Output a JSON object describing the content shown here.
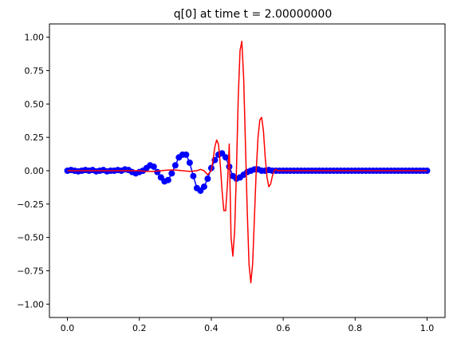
{
  "chart_data": {
    "type": "line",
    "title": "q[0] at time t =     2.00000000",
    "xlabel": "",
    "ylabel": "",
    "xlim": [
      -0.05,
      1.05
    ],
    "ylim": [
      -1.1,
      1.1
    ],
    "xticks": [
      0.0,
      0.2,
      0.4,
      0.6,
      0.8,
      1.0
    ],
    "xtick_labels": [
      "0.0",
      "0.2",
      "0.4",
      "0.6",
      "0.8",
      "1.0"
    ],
    "yticks": [
      -1.0,
      -0.75,
      -0.5,
      -0.25,
      0.0,
      0.25,
      0.5,
      0.75,
      1.0
    ],
    "ytick_labels": [
      "−1.00",
      "−0.75",
      "−0.50",
      "−0.25",
      "0.00",
      "0.25",
      "0.50",
      "0.75",
      "1.00"
    ],
    "grid": false,
    "series": [
      {
        "style": "markers-line",
        "color": "#0000ff",
        "x": [
          0.0,
          0.01,
          0.02,
          0.03,
          0.04,
          0.05,
          0.06,
          0.07,
          0.08,
          0.09,
          0.1,
          0.11,
          0.12,
          0.13,
          0.14,
          0.15,
          0.16,
          0.17,
          0.18,
          0.19,
          0.2,
          0.21,
          0.22,
          0.23,
          0.24,
          0.25,
          0.26,
          0.27,
          0.28,
          0.29,
          0.3,
          0.31,
          0.32,
          0.33,
          0.34,
          0.35,
          0.36,
          0.37,
          0.38,
          0.39,
          0.4,
          0.41,
          0.42,
          0.43,
          0.44,
          0.45,
          0.46,
          0.47,
          0.48,
          0.49,
          0.5,
          0.51,
          0.52,
          0.53,
          0.54,
          0.55,
          0.56,
          0.57,
          0.58,
          0.59,
          0.6,
          0.61,
          0.62,
          0.63,
          0.64,
          0.65,
          0.66,
          0.67,
          0.68,
          0.69,
          0.7,
          0.71,
          0.72,
          0.73,
          0.74,
          0.75,
          0.76,
          0.77,
          0.78,
          0.79,
          0.8,
          0.81,
          0.82,
          0.83,
          0.84,
          0.85,
          0.86,
          0.87,
          0.88,
          0.89,
          0.9,
          0.91,
          0.92,
          0.93,
          0.94,
          0.95,
          0.96,
          0.97,
          0.98,
          0.99,
          1.0
        ],
        "y": [
          0.0,
          0.005,
          0.0,
          -0.005,
          0.0,
          0.005,
          0.0,
          0.005,
          -0.005,
          0.0,
          0.005,
          -0.005,
          0.0,
          0.0,
          0.005,
          0.0,
          0.01,
          0.005,
          -0.01,
          -0.02,
          -0.01,
          0.0,
          0.02,
          0.04,
          0.03,
          -0.01,
          -0.05,
          -0.08,
          -0.07,
          -0.02,
          0.04,
          0.1,
          0.12,
          0.12,
          0.06,
          -0.04,
          -0.13,
          -0.15,
          -0.12,
          -0.06,
          0.02,
          0.08,
          0.12,
          0.13,
          0.1,
          0.03,
          -0.04,
          -0.06,
          -0.05,
          -0.03,
          -0.01,
          0.0,
          0.01,
          0.01,
          0.0,
          0.0,
          0.005,
          0.0,
          0.0,
          0.0,
          0.0,
          0.0,
          0.0,
          0.0,
          0.0,
          0.0,
          0.0,
          0.0,
          0.0,
          0.0,
          0.0,
          0.0,
          0.0,
          0.0,
          0.0,
          0.0,
          0.0,
          0.0,
          0.0,
          0.0,
          0.0,
          0.0,
          0.0,
          0.0,
          0.0,
          0.0,
          0.0,
          0.0,
          0.0,
          0.0,
          0.0,
          0.0,
          0.0,
          0.0,
          0.0,
          0.0,
          0.0,
          0.0,
          0.0,
          0.0,
          0.0
        ]
      },
      {
        "style": "line",
        "color": "#ff0000",
        "x": [
          0.0,
          0.02,
          0.04,
          0.06,
          0.08,
          0.1,
          0.12,
          0.14,
          0.16,
          0.18,
          0.2,
          0.22,
          0.24,
          0.26,
          0.28,
          0.3,
          0.32,
          0.34,
          0.36,
          0.37,
          0.38,
          0.39,
          0.4,
          0.405,
          0.41,
          0.415,
          0.42,
          0.425,
          0.43,
          0.435,
          0.44,
          0.445,
          0.45,
          0.455,
          0.46,
          0.465,
          0.47,
          0.475,
          0.48,
          0.485,
          0.49,
          0.495,
          0.5,
          0.505,
          0.51,
          0.515,
          0.52,
          0.525,
          0.53,
          0.535,
          0.54,
          0.545,
          0.55,
          0.555,
          0.56,
          0.565,
          0.57,
          0.575,
          0.58,
          0.585,
          0.59,
          0.595,
          0.6,
          0.61,
          0.62,
          0.63,
          0.64,
          0.66,
          0.68,
          0.7,
          0.75,
          0.8,
          0.85,
          0.9,
          0.95,
          1.0
        ],
        "y": [
          0.0,
          0.0,
          0.0,
          0.0,
          0.0,
          0.0,
          0.0,
          0.0,
          0.0,
          0.0,
          0.0,
          -0.005,
          -0.005,
          0.0,
          0.005,
          0.005,
          0.0,
          -0.005,
          0.0,
          0.01,
          0.0,
          -0.03,
          0.0,
          0.08,
          0.18,
          0.23,
          0.2,
          0.05,
          -0.15,
          -0.3,
          -0.3,
          -0.1,
          0.2,
          -0.5,
          -0.64,
          -0.45,
          0.0,
          0.55,
          0.9,
          0.97,
          0.7,
          0.2,
          -0.3,
          -0.7,
          -0.84,
          -0.7,
          -0.35,
          0.0,
          0.25,
          0.38,
          0.4,
          0.3,
          0.1,
          -0.05,
          -0.12,
          -0.1,
          -0.04,
          0.0,
          0.01,
          0.0,
          0.0,
          0.0,
          0.0,
          0.0,
          0.0,
          0.0,
          0.0,
          0.0,
          0.0,
          0.0,
          0.0,
          0.0,
          0.0,
          0.0,
          0.0,
          0.0
        ]
      }
    ]
  }
}
